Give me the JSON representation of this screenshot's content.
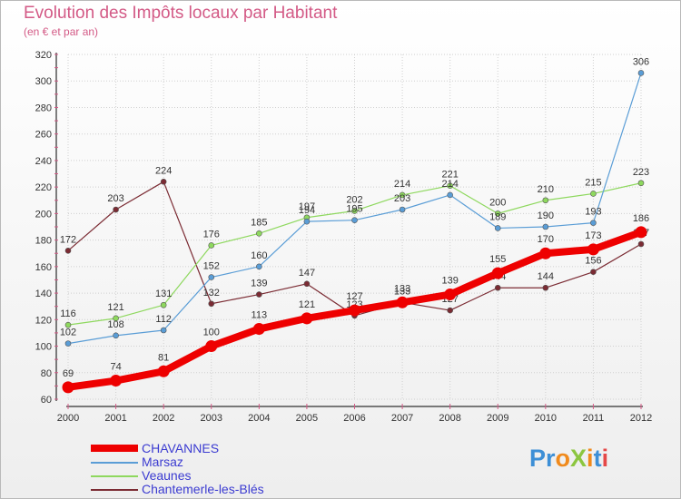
{
  "title": "Evolution des Impôts locaux par Habitant",
  "subtitle": "(en € et par an)",
  "logo_text": "ProXiti",
  "chart_data": {
    "type": "line",
    "title": "Evolution des Impôts locaux par Habitant",
    "ylabel": "(en € et par an)",
    "ylim": [
      60,
      320
    ],
    "yticks": [
      60,
      80,
      100,
      120,
      140,
      160,
      180,
      200,
      220,
      240,
      260,
      280,
      300,
      320
    ],
    "x": [
      2000,
      2001,
      2002,
      2003,
      2004,
      2005,
      2006,
      2007,
      2008,
      2009,
      2010,
      2011,
      2012
    ],
    "series": [
      {
        "name": "Chantemerle-les-Blés",
        "color": "#7b2b33",
        "values": [
          172,
          203,
          224,
          132,
          139,
          147,
          123,
          133,
          127,
          144,
          144,
          156,
          177
        ]
      },
      {
        "name": "Veaunes",
        "color": "#8ed85e",
        "values": [
          116,
          121,
          131,
          176,
          185,
          197,
          202,
          214,
          221,
          200,
          210,
          215,
          223
        ]
      },
      {
        "name": "Marsaz",
        "color": "#5a9dd6",
        "values": [
          102,
          108,
          112,
          152,
          160,
          194,
          195,
          203,
          214,
          189,
          190,
          193,
          306
        ]
      },
      {
        "name": "CHAVANNES",
        "color": "#ee0000",
        "values": [
          69,
          74,
          81,
          100,
          113,
          121,
          127,
          133,
          139,
          155,
          170,
          173,
          186
        ]
      }
    ],
    "legend": [
      "CHAVANNES",
      "Marsaz",
      "Veaunes",
      "Chantemerle-les-Blés"
    ],
    "legend_position": "bottom-left"
  }
}
